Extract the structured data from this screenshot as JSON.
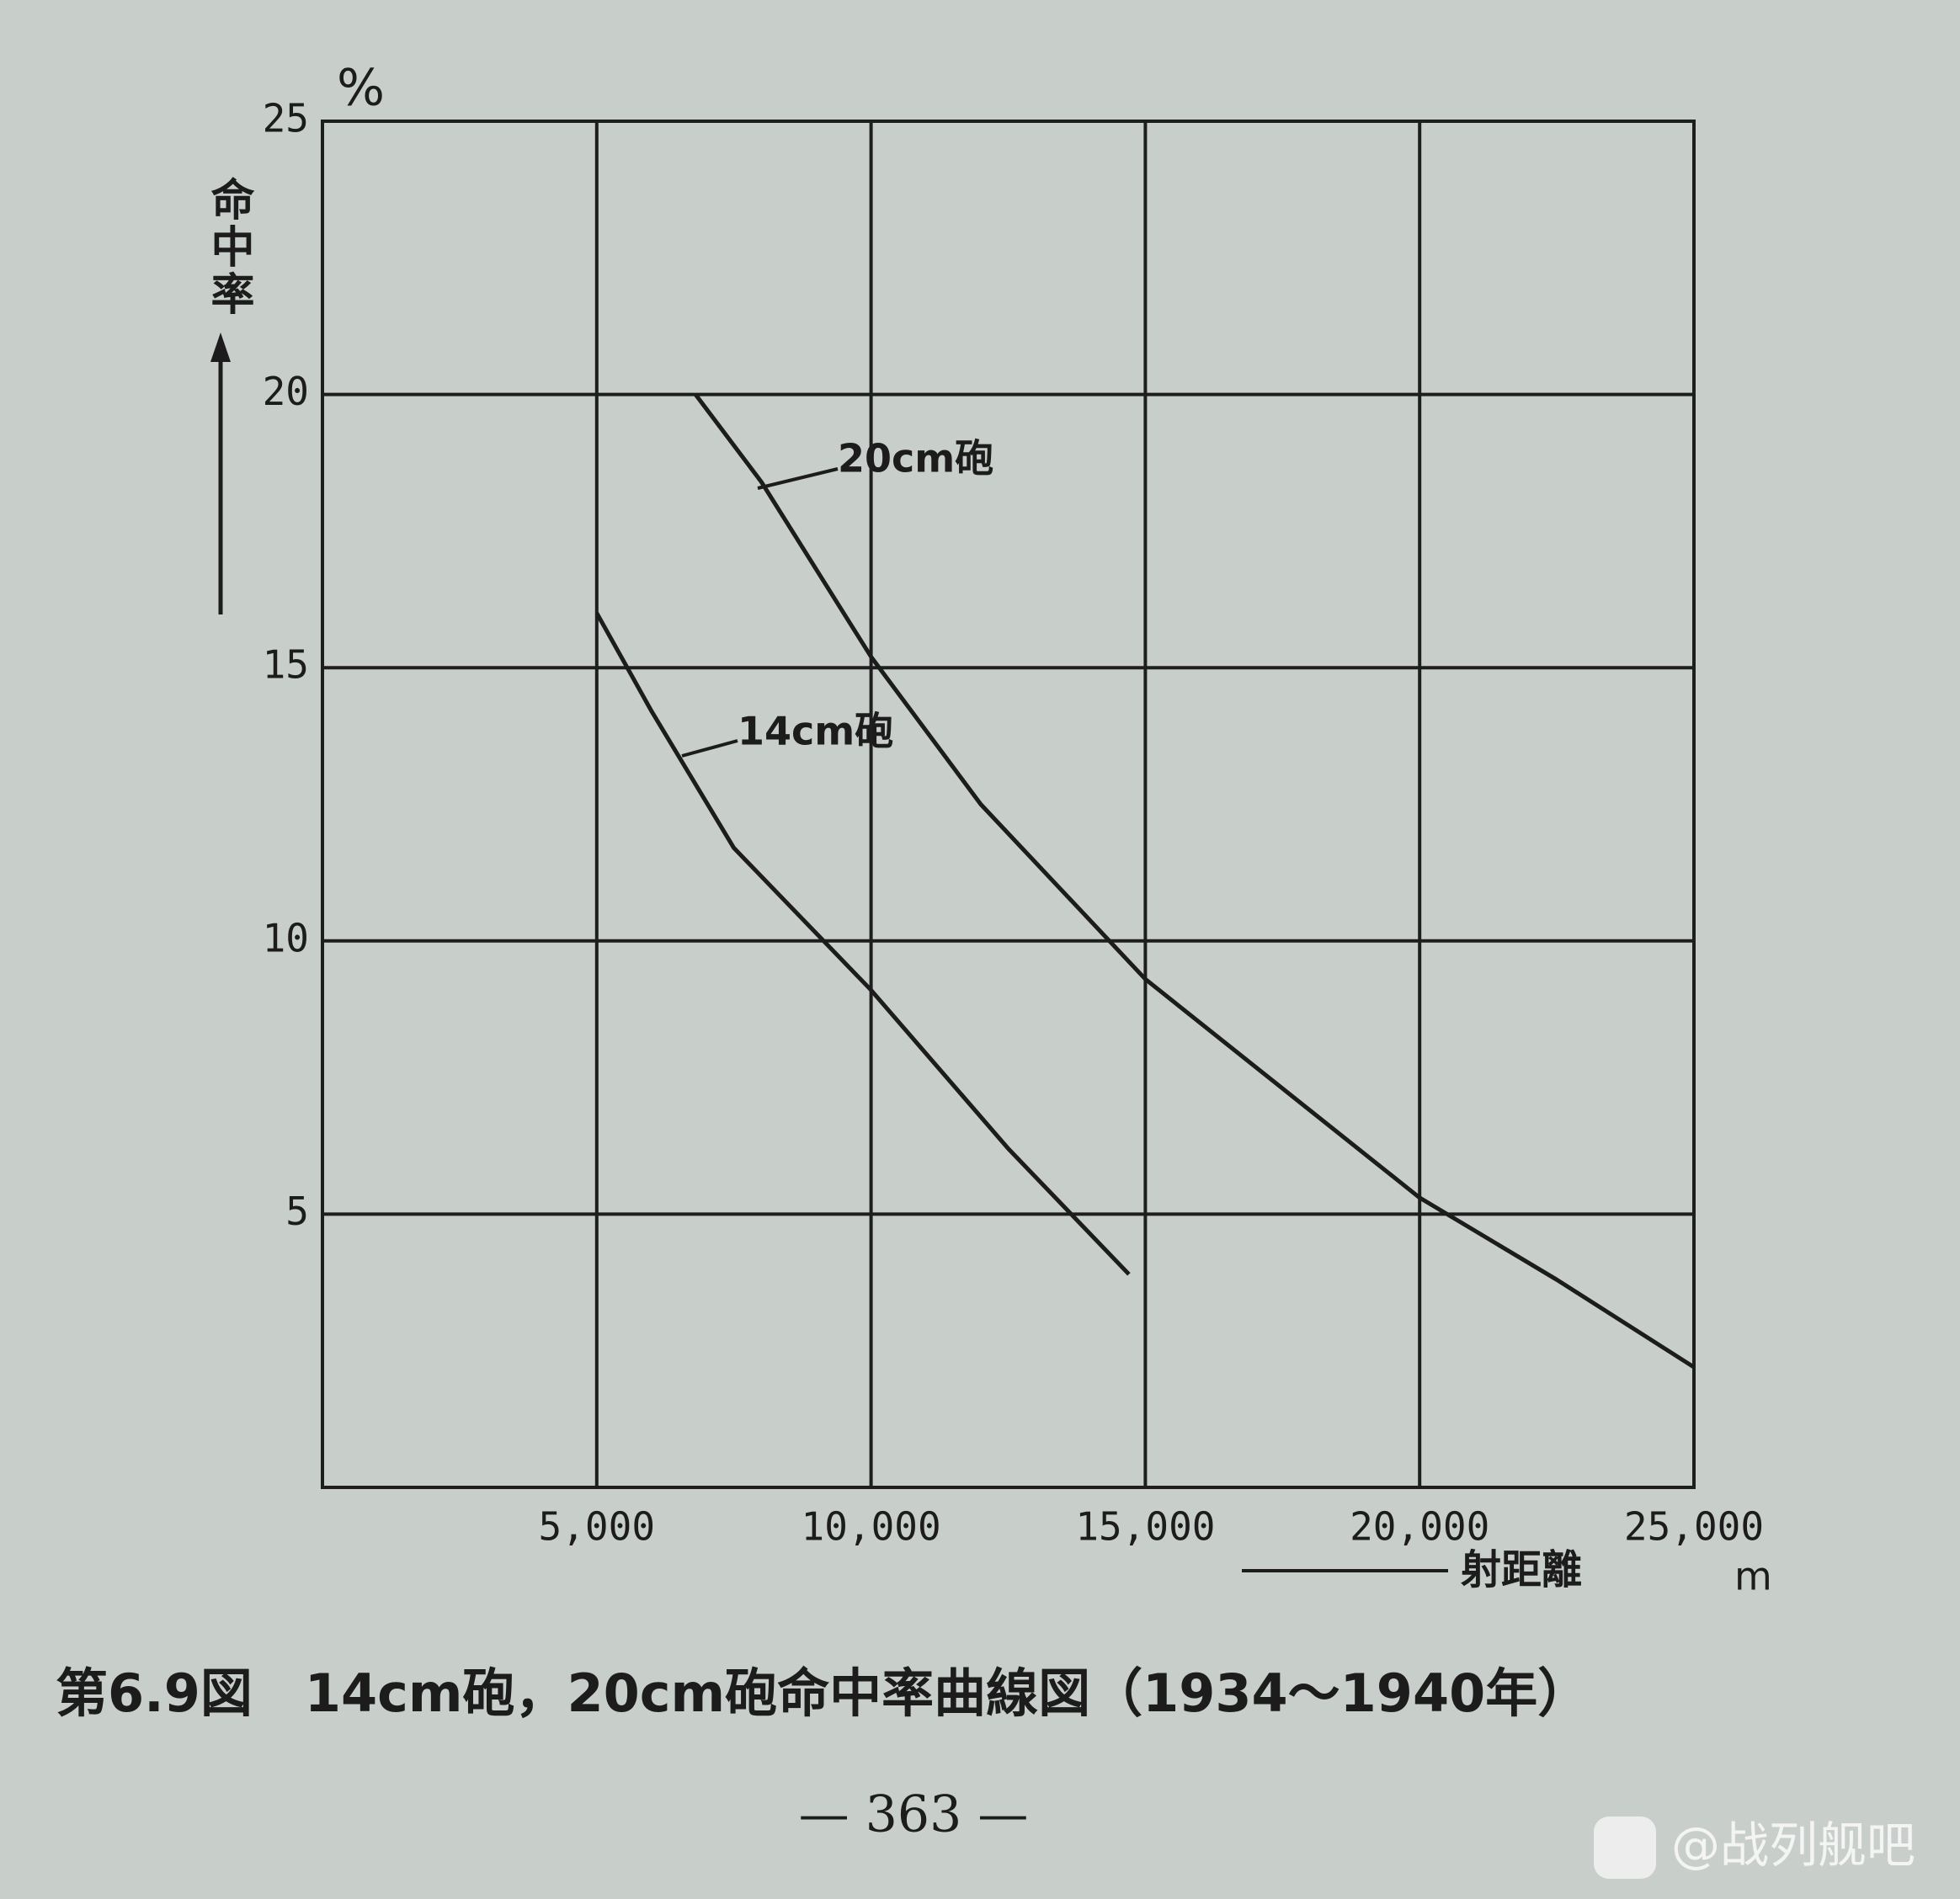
{
  "chart_data": {
    "type": "line",
    "y_label": "命中率",
    "y_unit": "%",
    "x_label": "射距離",
    "x_unit": "m",
    "xlim": [
      0,
      25000
    ],
    "ylim": [
      0,
      25
    ],
    "xticks": [
      {
        "value": 5000,
        "label": "5,000"
      },
      {
        "value": 10000,
        "label": "10,000"
      },
      {
        "value": 15000,
        "label": "15,000"
      },
      {
        "value": 20000,
        "label": "20,000"
      },
      {
        "value": 25000,
        "label": "25,000"
      }
    ],
    "yticks": [
      5,
      10,
      15,
      20,
      25
    ],
    "grid": true,
    "series": [
      {
        "name": "20cm砲",
        "color": "#1c1c1c",
        "x": [
          6800,
          8000,
          10000,
          12000,
          15000,
          17500,
          20000,
          22500,
          25000
        ],
        "values": [
          20,
          18.4,
          15.2,
          12.5,
          9.3,
          7.3,
          5.3,
          3.8,
          2.2
        ]
      },
      {
        "name": "14cm砲",
        "color": "#1c1c1c",
        "x": [
          5000,
          6000,
          7500,
          10000,
          12500,
          14700
        ],
        "values": [
          16.0,
          14.2,
          11.7,
          9.1,
          6.2,
          3.9
        ]
      }
    ],
    "caption": "第6.9図　14cm砲，20cm砲命中率曲線図（1934～1940年）",
    "page_number": "— 363 —",
    "watermark": "@战列舰吧"
  }
}
